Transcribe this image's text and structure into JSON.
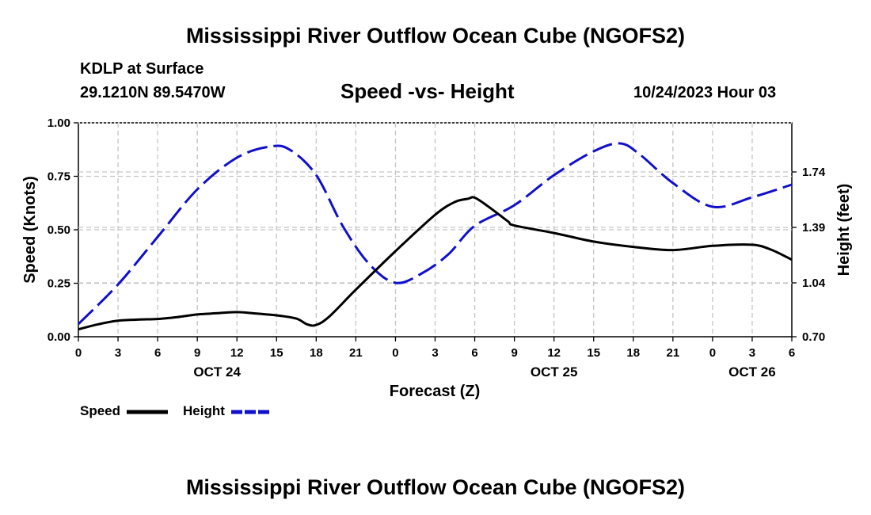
{
  "header": {
    "title": "Mississippi River Outflow Ocean Cube (NGOFS2)",
    "station": "KDLP at Surface",
    "coordinates": "29.1210N  89.5470W",
    "timestamp": "10/24/2023 Hour 03"
  },
  "footer": {
    "title": "Mississippi River Outflow Ocean Cube (NGOFS2)"
  },
  "chart_data": {
    "type": "line",
    "title": "Speed -vs- Height",
    "xlabel": "Forecast (Z)",
    "ylabel": "Speed (Knots)",
    "ylabel_right": "Height (feet)",
    "x_unit": "forecast hour from Oct 24 00Z",
    "xlim": [
      0,
      54
    ],
    "ylim": [
      0,
      1
    ],
    "ylim_right": [
      0.7,
      2.05
    ],
    "grid": true,
    "legend_position": "bottom-left",
    "x_ticks": [
      {
        "x": 0,
        "label": "0"
      },
      {
        "x": 3,
        "label": "3"
      },
      {
        "x": 6,
        "label": "6"
      },
      {
        "x": 9,
        "label": "9"
      },
      {
        "x": 12,
        "label": "12"
      },
      {
        "x": 15,
        "label": "15"
      },
      {
        "x": 18,
        "label": "18"
      },
      {
        "x": 21,
        "label": "21"
      },
      {
        "x": 24,
        "label": "0"
      },
      {
        "x": 27,
        "label": "3"
      },
      {
        "x": 30,
        "label": "6"
      },
      {
        "x": 33,
        "label": "9"
      },
      {
        "x": 36,
        "label": "12"
      },
      {
        "x": 39,
        "label": "15"
      },
      {
        "x": 42,
        "label": "18"
      },
      {
        "x": 45,
        "label": "21"
      },
      {
        "x": 48,
        "label": "0"
      },
      {
        "x": 51,
        "label": "3"
      },
      {
        "x": 54,
        "label": "6"
      }
    ],
    "date_labels": [
      {
        "x": 10.5,
        "label": "OCT 24"
      },
      {
        "x": 36,
        "label": "OCT 25"
      },
      {
        "x": 51,
        "label": "OCT 26"
      }
    ],
    "y_ticks_left": [
      {
        "y": 0.0,
        "label": "0.00"
      },
      {
        "y": 0.25,
        "label": "0.25"
      },
      {
        "y": 0.5,
        "label": "0.50"
      },
      {
        "y": 0.75,
        "label": "0.75"
      },
      {
        "y": 1.0,
        "label": "1.00"
      }
    ],
    "y_ticks_right": [
      {
        "y": 0.7,
        "label": "0.70"
      },
      {
        "y": 1.04,
        "label": "1.04"
      },
      {
        "y": 1.39,
        "label": "1.39"
      },
      {
        "y": 1.74,
        "label": "1.74"
      }
    ],
    "series": [
      {
        "name": "Speed",
        "axis": "left",
        "color": "#000000",
        "dash": "solid",
        "x": [
          0,
          1.5,
          3,
          4.5,
          6,
          7.5,
          9,
          10.5,
          12,
          13.5,
          15,
          16.5,
          17.3,
          18,
          19,
          21,
          24,
          27,
          28.5,
          29.5,
          30,
          31,
          32.5,
          33,
          36,
          39,
          42,
          45,
          48,
          51,
          52.5,
          54
        ],
        "y": [
          0.035,
          0.058,
          0.075,
          0.08,
          0.083,
          0.092,
          0.104,
          0.11,
          0.115,
          0.108,
          0.1,
          0.085,
          0.058,
          0.055,
          0.095,
          0.22,
          0.4,
          0.57,
          0.63,
          0.645,
          0.65,
          0.61,
          0.54,
          0.52,
          0.485,
          0.445,
          0.42,
          0.405,
          0.425,
          0.43,
          0.405,
          0.36
        ]
      },
      {
        "name": "Height",
        "axis": "right",
        "color": "#1010cc",
        "dash": "dashed",
        "x": [
          0,
          3,
          6,
          9,
          12,
          14.5,
          16,
          18,
          20,
          22,
          24,
          26,
          28,
          30,
          33,
          36,
          39,
          41,
          42.5,
          45,
          48,
          51,
          54
        ],
        "y": [
          0.78,
          1.03,
          1.33,
          1.63,
          1.83,
          1.9,
          1.88,
          1.72,
          1.4,
          1.16,
          1.04,
          1.1,
          1.22,
          1.4,
          1.53,
          1.72,
          1.87,
          1.92,
          1.85,
          1.67,
          1.52,
          1.58,
          1.66
        ]
      }
    ]
  }
}
